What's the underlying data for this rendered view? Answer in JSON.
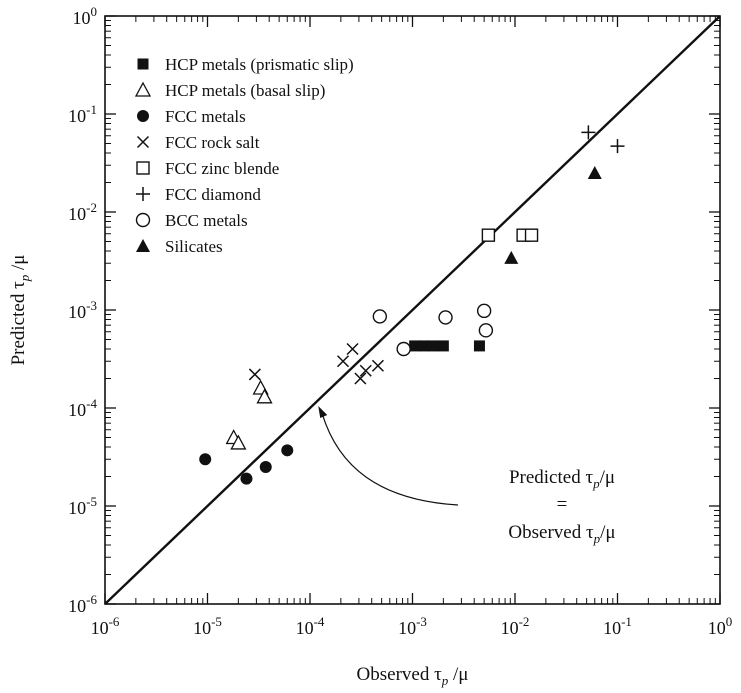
{
  "chart_data": {
    "type": "scatter",
    "xscale": "log",
    "yscale": "log",
    "xlim": [
      1e-06,
      1
    ],
    "ylim": [
      1e-06,
      1
    ],
    "xlabel": "Observed τ",
    "xlabel_sub": "p",
    "xlabel_tail": " /μ",
    "ylabel": "Predicted τ",
    "ylabel_sub": "p",
    "ylabel_tail": " /μ",
    "tick_exponents": [
      -6,
      -5,
      -4,
      -3,
      -2,
      -1,
      0
    ],
    "tick_base": "10",
    "grid": false,
    "legend_position": "top-left",
    "reference_line": {
      "from": [
        1e-06,
        1e-06
      ],
      "to": [
        1,
        1
      ]
    },
    "annotation": {
      "line1": "Predicted τ",
      "line1_sub": "p",
      "line1_tail": "/μ",
      "line2": "=",
      "line3": "Observed τ",
      "line3_sub": "p",
      "line3_tail": "/μ",
      "arrow_target": [
        0.00011,
        0.00011
      ]
    },
    "series": [
      {
        "name": "HCP metals (prismatic slip)",
        "marker": "filled-square",
        "points": [
          [
            0.00105,
            0.00043
          ],
          [
            0.0013,
            0.00043
          ],
          [
            0.0016,
            0.00043
          ],
          [
            0.002,
            0.00043
          ],
          [
            0.0045,
            0.00043
          ]
        ]
      },
      {
        "name": "HCP metals (basal slip)",
        "marker": "open-triangle",
        "points": [
          [
            1.8e-05,
            5e-05
          ],
          [
            2e-05,
            4.4e-05
          ],
          [
            3.3e-05,
            0.00016
          ],
          [
            3.6e-05,
            0.00013
          ]
        ]
      },
      {
        "name": "FCC metals",
        "marker": "filled-circle",
        "points": [
          [
            9.5e-06,
            3e-05
          ],
          [
            2.4e-05,
            1.9e-05
          ],
          [
            3.7e-05,
            2.5e-05
          ],
          [
            6e-05,
            3.7e-05
          ]
        ]
      },
      {
        "name": "FCC rock salt",
        "marker": "x",
        "points": [
          [
            2.9e-05,
            0.00022
          ],
          [
            0.00021,
            0.0003
          ],
          [
            0.00026,
            0.0004
          ],
          [
            0.00031,
            0.0002
          ],
          [
            0.00035,
            0.00024
          ],
          [
            0.00046,
            0.00027
          ]
        ]
      },
      {
        "name": "FCC zinc blende",
        "marker": "open-square",
        "points": [
          [
            0.0055,
            0.0058
          ],
          [
            0.012,
            0.0058
          ],
          [
            0.0145,
            0.0058
          ]
        ]
      },
      {
        "name": "FCC diamond",
        "marker": "plus",
        "points": [
          [
            0.052,
            0.065
          ],
          [
            0.1,
            0.047
          ]
        ]
      },
      {
        "name": "BCC metals",
        "marker": "open-circle",
        "points": [
          [
            0.00048,
            0.00086
          ],
          [
            0.00082,
            0.0004
          ],
          [
            0.0021,
            0.00084
          ],
          [
            0.005,
            0.00098
          ],
          [
            0.0052,
            0.00062
          ]
        ]
      },
      {
        "name": "Silicates",
        "marker": "filled-triangle",
        "points": [
          [
            0.0092,
            0.0034
          ],
          [
            0.06,
            0.025
          ]
        ]
      }
    ]
  }
}
